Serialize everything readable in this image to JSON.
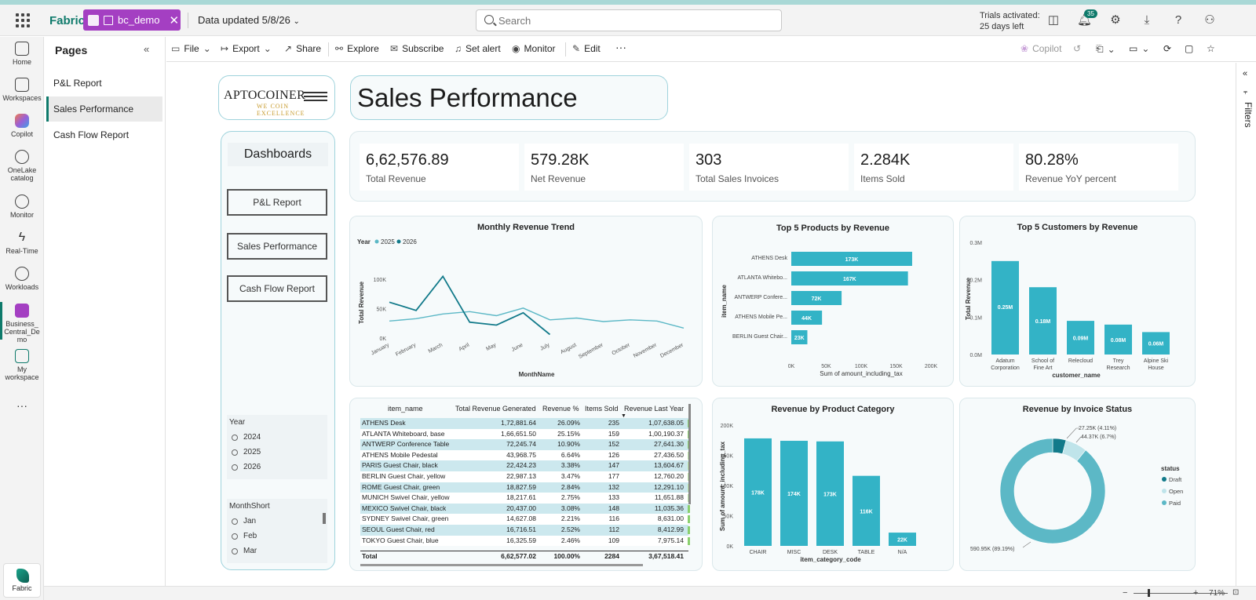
{
  "topbar": {
    "brand": "Fabric",
    "workspace_pill": "bc_demo",
    "data_updated": "Data updated 5/8/26",
    "search_placeholder": "Search",
    "trial_line1": "Trials activated:",
    "trial_line2": "25 days left",
    "notification_count": "35"
  },
  "rail": [
    {
      "label": "Home",
      "icon": "home-icon"
    },
    {
      "label": "Workspaces",
      "icon": "workspaces-icon"
    },
    {
      "label": "Copilot",
      "icon": "copilot-icon"
    },
    {
      "label": "OneLake catalog",
      "icon": "onelake-icon"
    },
    {
      "label": "Monitor",
      "icon": "monitor-icon"
    },
    {
      "label": "Real-Time",
      "icon": "realtime-icon"
    },
    {
      "label": "Workloads",
      "icon": "workloads-icon"
    },
    {
      "label": "Business_Central_Demo",
      "icon": "report-icon"
    },
    {
      "label": "My workspace",
      "icon": "my-workspace-icon"
    },
    {
      "label": "Fabric",
      "icon": "fabric-icon"
    }
  ],
  "pages": {
    "title": "Pages",
    "items": [
      "P&L Report",
      "Sales Performance",
      "Cash Flow Report"
    ]
  },
  "toolbar": {
    "file": "File",
    "export": "Export",
    "share": "Share",
    "explore": "Explore",
    "subscribe": "Subscribe",
    "set_alert": "Set alert",
    "monitor": "Monitor",
    "edit": "Edit",
    "copilot": "Copilot"
  },
  "filters_label": "Filters",
  "status": {
    "zoom": "71%"
  },
  "report": {
    "logo_text": "APTOCOINER",
    "logo_tagline": "WE  COIN  EXCELLENCE",
    "title": "Sales Performance",
    "dash_title": "Dashboards",
    "nav": [
      "P&L Report",
      "Sales Performance",
      "Cash Flow Report"
    ],
    "year_slicer": {
      "title": "Year",
      "options": [
        "2024",
        "2025",
        "2026"
      ]
    },
    "month_slicer": {
      "title": "MonthShort",
      "options": [
        "Jan",
        "Feb",
        "Mar"
      ]
    },
    "kpis": [
      {
        "value": "6,62,576.89",
        "label": "Total Revenue"
      },
      {
        "value": "579.28K",
        "label": "Net Revenue"
      },
      {
        "value": "303",
        "label": "Total Sales Invoices"
      },
      {
        "value": "2.284K",
        "label": "Items Sold"
      },
      {
        "value": "80.28%",
        "label": "Revenue YoY percent"
      }
    ],
    "table": {
      "headers": [
        "item_name",
        "Total Revenue Generated",
        "Revenue %",
        "Items Sold",
        "Revenue Last Year"
      ],
      "rows": [
        [
          "ATHENS Desk",
          "1,72,881.64",
          "26.09%",
          "235",
          "1,07,638.05"
        ],
        [
          "ATLANTA Whiteboard, base",
          "1,66,651.50",
          "25.15%",
          "159",
          "1,00,190.37"
        ],
        [
          "ANTWERP Conference Table",
          "72,245.74",
          "10.90%",
          "152",
          "27,641.30"
        ],
        [
          "ATHENS Mobile Pedestal",
          "43,968.75",
          "6.64%",
          "126",
          "27,436.50"
        ],
        [
          "PARIS Guest Chair, black",
          "22,424.23",
          "3.38%",
          "147",
          "13,604.67"
        ],
        [
          "BERLIN Guest Chair, yellow",
          "22,987.13",
          "3.47%",
          "177",
          "12,760.20"
        ],
        [
          "ROME Guest Chair, green",
          "18,827.59",
          "2.84%",
          "132",
          "12,291.10"
        ],
        [
          "MUNICH Swivel Chair, yellow",
          "18,217.61",
          "2.75%",
          "133",
          "11,651.88"
        ],
        [
          "MEXICO Swivel Chair, black",
          "20,437.00",
          "3.08%",
          "148",
          "11,035.36"
        ],
        [
          "SYDNEY Swivel Chair, green",
          "14,627.08",
          "2.21%",
          "116",
          "8,631.00"
        ],
        [
          "SEOUL Guest Chair, red",
          "16,716.51",
          "2.52%",
          "112",
          "8,412.99"
        ],
        [
          "TOKYO Guest Chair, blue",
          "16,325.59",
          "2.46%",
          "109",
          "7,975.14"
        ]
      ],
      "total": [
        "Total",
        "6,62,577.02",
        "100.00%",
        "2284",
        "3,67,518.41"
      ]
    }
  },
  "chart_data": [
    {
      "type": "line",
      "title": "Monthly Revenue Trend",
      "xlabel": "MonthName",
      "ylabel": "Total Revenue",
      "legend_title": "Year",
      "categories": [
        "January",
        "February",
        "March",
        "April",
        "May",
        "June",
        "July",
        "August",
        "September",
        "October",
        "November",
        "December"
      ],
      "series": [
        {
          "name": "2025",
          "color": "#5cb8c6",
          "values": [
            29000,
            33000,
            41000,
            45000,
            38000,
            51000,
            31000,
            34000,
            28000,
            31000,
            29000,
            17000
          ]
        },
        {
          "name": "2026",
          "color": "#127a8a",
          "values": [
            61000,
            47000,
            105000,
            27000,
            22000,
            43000,
            6000,
            null,
            null,
            null,
            null,
            null
          ]
        }
      ],
      "yticks": [
        "0K",
        "50K",
        "100K"
      ],
      "ylim": [
        0,
        120000
      ]
    },
    {
      "type": "bar",
      "orientation": "horizontal",
      "title": "Top 5 Products by Revenue",
      "xlabel": "Sum of amount_including_tax",
      "ylabel": "item_name",
      "categories": [
        "ATHENS Desk",
        "ATLANTA Whitebo...",
        "ANTWERP Confere...",
        "ATHENS Mobile Pe...",
        "BERLIN Guest Chair..."
      ],
      "values": [
        173000,
        167000,
        72000,
        44000,
        23000
      ],
      "labels": [
        "173K",
        "167K",
        "72K",
        "44K",
        "23K"
      ],
      "xticks": [
        "0K",
        "50K",
        "100K",
        "150K",
        "200K"
      ],
      "xlim": [
        0,
        200000
      ]
    },
    {
      "type": "bar",
      "title": "Top 5 Customers by Revenue",
      "xlabel": "customer_name",
      "ylabel": "Total Revenue",
      "categories": [
        "Adatum Corporation",
        "School of Fine Art",
        "Relecloud",
        "Trey Research",
        "Alpine Ski House"
      ],
      "values": [
        250000,
        180000,
        90000,
        80000,
        60000
      ],
      "labels": [
        "0.25M",
        "0.18M",
        "0.09M",
        "0.08M",
        "0.06M"
      ],
      "yticks": [
        "0.0M",
        "0.1M",
        "0.2M",
        "0.3M"
      ],
      "ylim": [
        0,
        300000
      ]
    },
    {
      "type": "bar",
      "title": "Revenue by Product Category",
      "xlabel": "item_category_code",
      "ylabel": "Sum of amount_including_tax",
      "categories": [
        "CHAIR",
        "MISC",
        "DESK",
        "TABLE",
        "N/A"
      ],
      "values": [
        178000,
        174000,
        173000,
        116000,
        22000
      ],
      "labels": [
        "178K",
        "174K",
        "173K",
        "116K",
        "22K"
      ],
      "yticks": [
        "0K",
        "50K",
        "100K",
        "150K",
        "200K"
      ],
      "ylim": [
        0,
        200000
      ]
    },
    {
      "type": "pie",
      "donut": true,
      "title": "Revenue by Invoice Status",
      "legend_title": "status",
      "slices": [
        {
          "name": "Draft",
          "value": 27250,
          "label": "27.25K (4.11%)",
          "color": "#127a8a"
        },
        {
          "name": "Open",
          "value": 44370,
          "label": "44.37K (6.7%)",
          "color": "#bfe4ea"
        },
        {
          "name": "Paid",
          "value": 590950,
          "label": "590.95K (89.19%)",
          "color": "#5cb8c6"
        }
      ]
    }
  ]
}
